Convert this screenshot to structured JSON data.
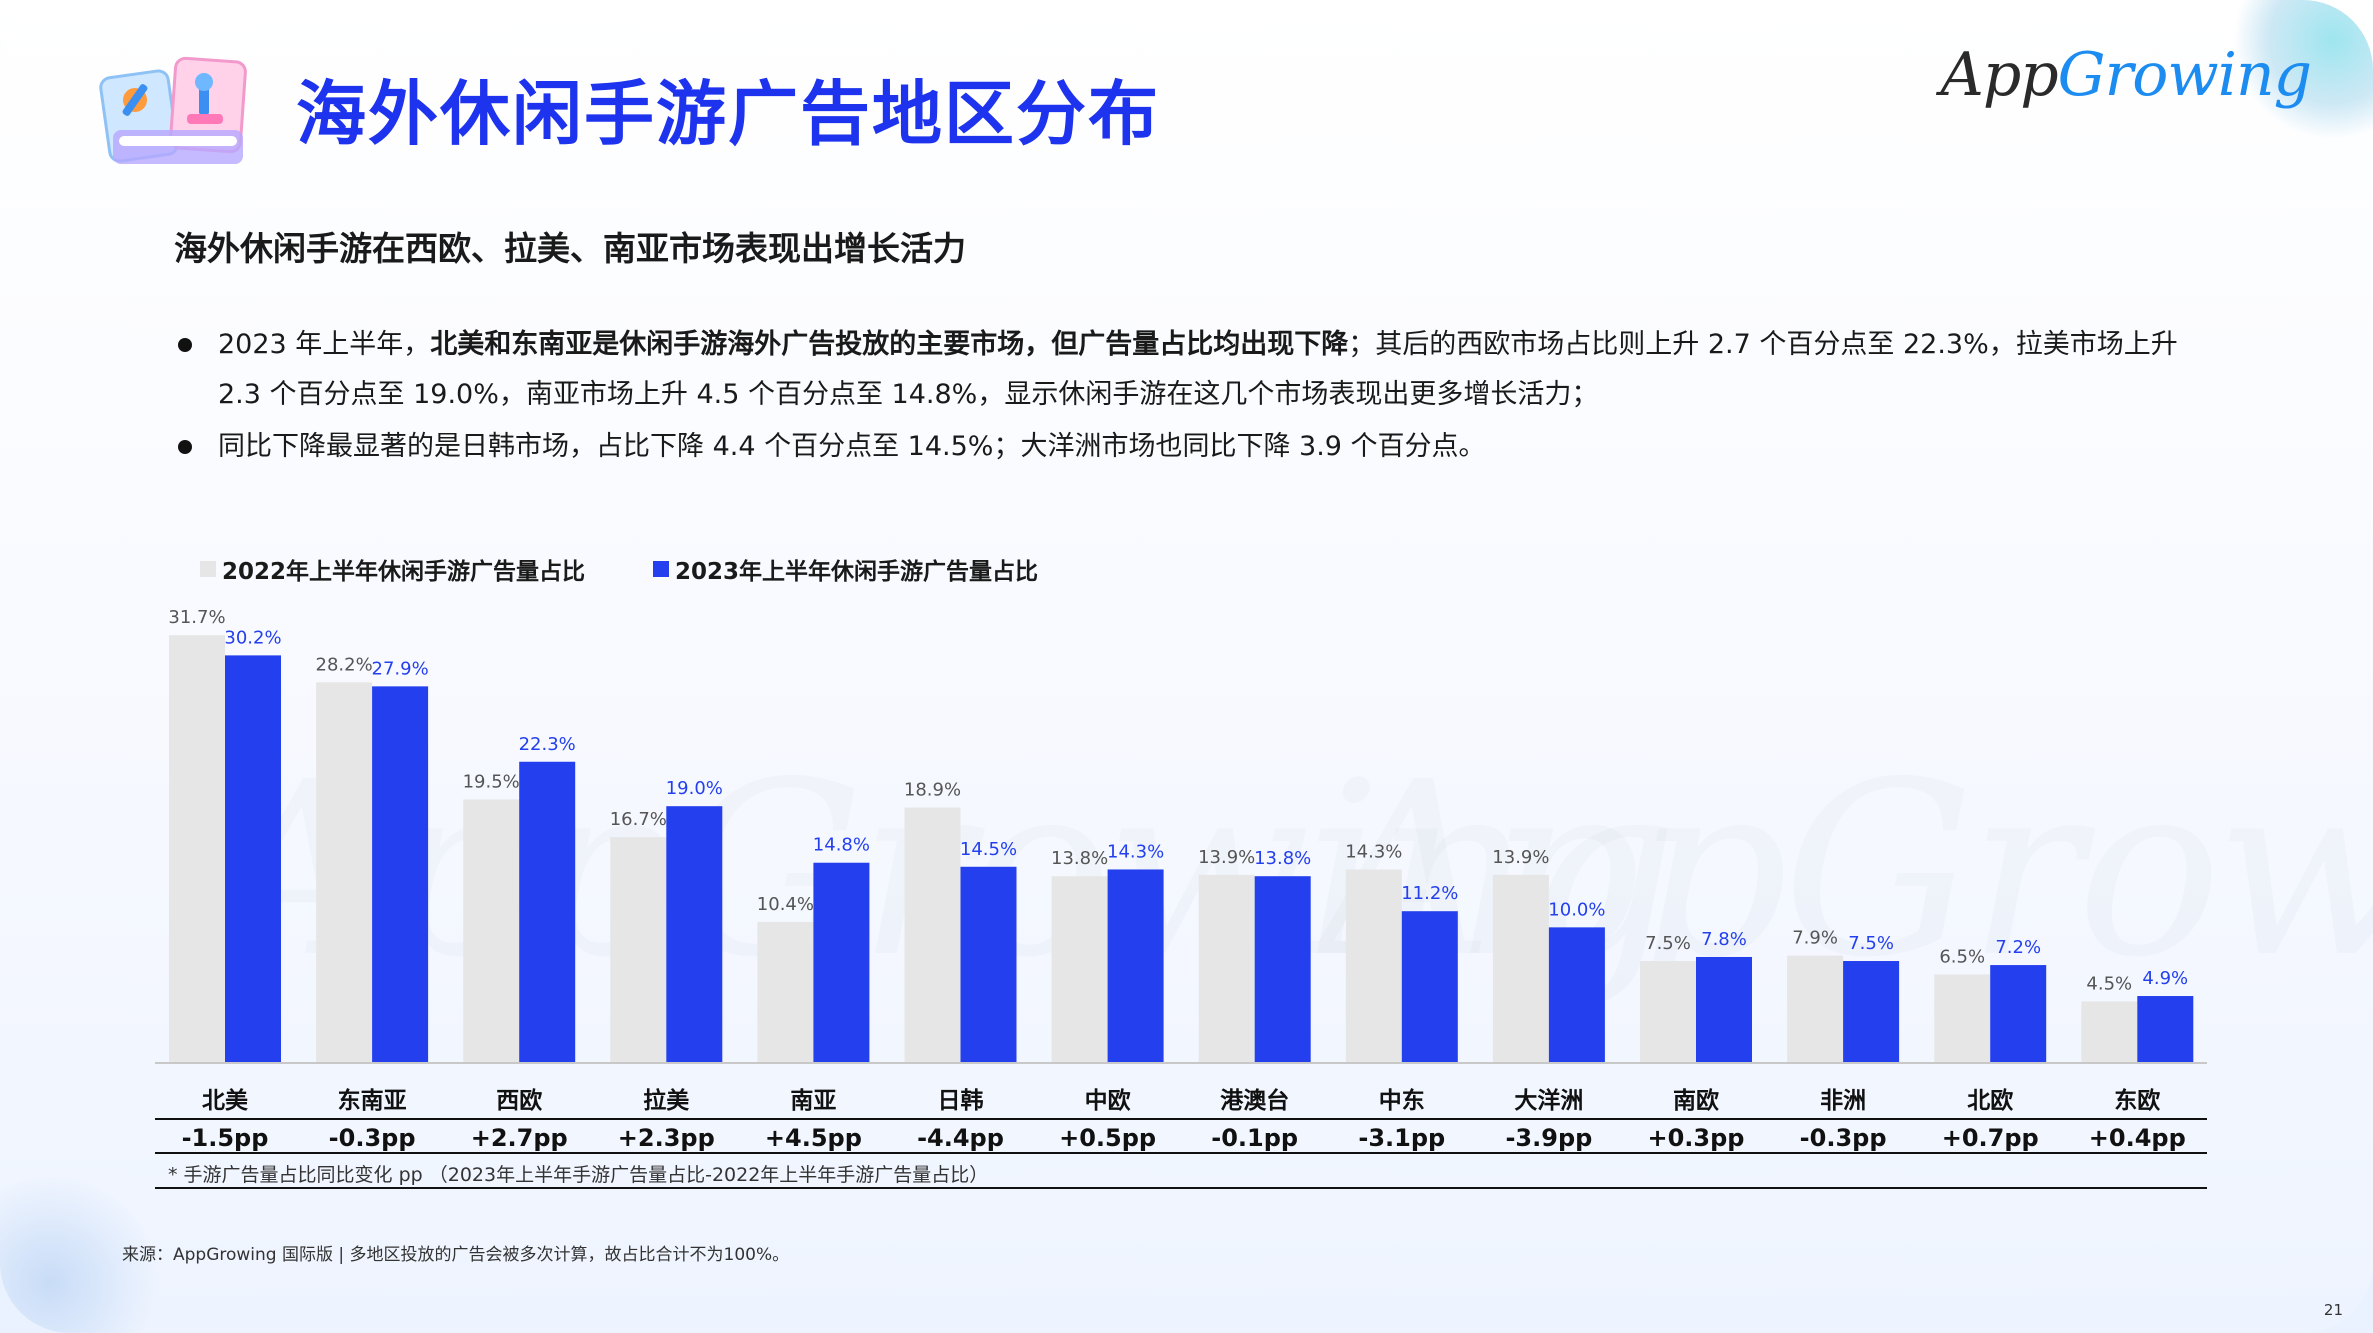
{
  "header": {
    "title": "海外休闲手游广告地区分布",
    "brand_left": "App",
    "brand_right": "Growing"
  },
  "subtitle": "海外休闲手游在西欧、拉美、南亚市场表现出增长活力",
  "bullets": [
    {
      "pre": "2023 年上半年，",
      "bold": "北美和东南亚是休闲手游海外广告投放的主要市场，但广告量占比均出现下降",
      "post": "；其后的西欧市场占比则上升 2.7 个百分点至 22.3%，拉美市场上升 2.3 个百分点至 19.0%，南亚市场上升 4.5 个百分点至 14.8%，显示休闲手游在这几个市场表现出更多增长活力；"
    },
    {
      "pre": "同比下降最显著的是日韩市场，占比下降 4.4 个百分点至 14.5%；大洋洲市场也同比下降 3.9 个百分点。",
      "bold": "",
      "post": ""
    }
  ],
  "chart_data": {
    "type": "bar",
    "categories": [
      "北美",
      "东南亚",
      "西欧",
      "拉美",
      "南亚",
      "日韩",
      "中欧",
      "港澳台",
      "中东",
      "大洋洲",
      "南欧",
      "非洲",
      "北欧",
      "东欧"
    ],
    "series": [
      {
        "name": "2022年上半年休闲手游广告量占比",
        "values": [
          31.7,
          28.2,
          19.5,
          16.7,
          10.4,
          18.9,
          13.8,
          13.9,
          14.3,
          13.9,
          7.5,
          7.9,
          6.5,
          4.5
        ],
        "color": "#e6e6e6",
        "label_color": "#555555"
      },
      {
        "name": "2023年上半年休闲手游广告量占比",
        "values": [
          30.2,
          27.9,
          22.3,
          19.0,
          14.8,
          14.5,
          14.3,
          13.8,
          11.2,
          10.0,
          7.8,
          7.5,
          7.2,
          4.9
        ],
        "color": "#2440ee",
        "label_color": "#2440ee"
      }
    ],
    "changes": [
      "-1.5pp",
      "-0.3pp",
      "+2.7pp",
      "+2.3pp",
      "+4.5pp",
      "-4.4pp",
      "+0.5pp",
      "-0.1pp",
      "-3.1pp",
      "-3.9pp",
      "+0.3pp",
      "-0.3pp",
      "+0.7pp",
      "+0.4pp"
    ],
    "value_suffix": "%",
    "ylim": [
      0,
      35
    ]
  },
  "footnote": "* 手游广告量占比同比变化 pp （2023年上半年手游广告量占比-2022年上半年手游广告量占比）",
  "source": "来源：AppGrowing 国际版 | 多地区投放的广告会被多次计算，故占比合计不为100%。",
  "page_number": "21",
  "watermark": "AppGrowing"
}
